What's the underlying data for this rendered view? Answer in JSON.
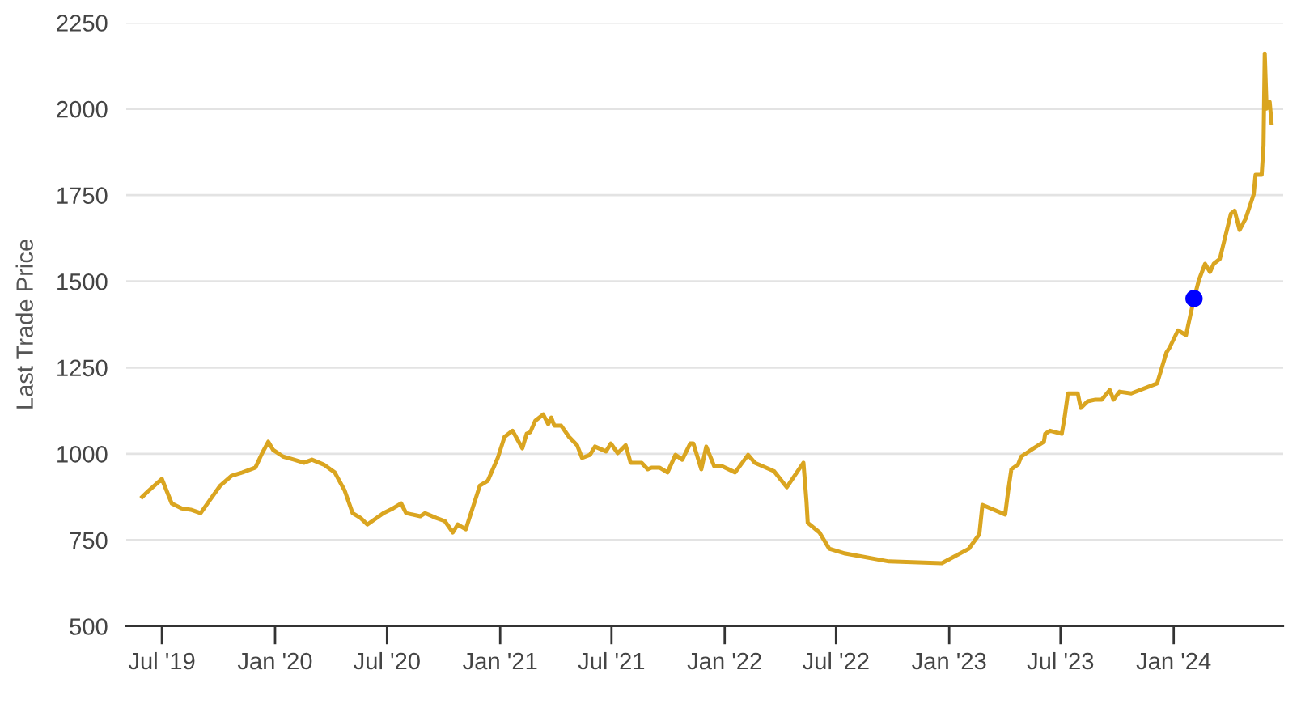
{
  "chart_data": {
    "type": "line",
    "ylabel": "Last Trade Price",
    "grid": "y",
    "xlim": [
      "2019-05-04",
      "2024-06-27"
    ],
    "ylim": [
      500,
      2250
    ],
    "yticks": [
      500,
      750,
      1000,
      1250,
      1500,
      1750,
      2000,
      2250
    ],
    "xticks": [
      {
        "value": "2019-07-01",
        "label": "Jul '19"
      },
      {
        "value": "2020-01-01",
        "label": "Jan '20"
      },
      {
        "value": "2020-07-01",
        "label": "Jul '20"
      },
      {
        "value": "2021-01-01",
        "label": "Jan '21"
      },
      {
        "value": "2021-07-01",
        "label": "Jul '21"
      },
      {
        "value": "2022-01-01",
        "label": "Jan '22"
      },
      {
        "value": "2022-07-01",
        "label": "Jul '22"
      },
      {
        "value": "2023-01-01",
        "label": "Jan '23"
      },
      {
        "value": "2023-07-01",
        "label": "Jul '23"
      },
      {
        "value": "2024-01-01",
        "label": "Jan '24"
      }
    ],
    "series": [
      {
        "color": "#daa520",
        "x": [
          "2019-05-30",
          "2019-06-10",
          "2019-07-01",
          "2019-07-17",
          "2019-08-02",
          "2019-08-17",
          "2019-09-02",
          "2019-09-15",
          "2019-10-04",
          "2019-10-22",
          "2019-11-09",
          "2019-11-30",
          "2019-12-11",
          "2019-12-21",
          "2019-12-29",
          "2020-01-14",
          "2020-02-01",
          "2020-02-17",
          "2020-03-01",
          "2020-03-20",
          "2020-04-07",
          "2020-04-23",
          "2020-05-06",
          "2020-05-19",
          "2020-05-30",
          "2020-06-25",
          "2020-07-11",
          "2020-07-24",
          "2020-08-01",
          "2020-08-24",
          "2020-09-01",
          "2020-09-19",
          "2020-10-03",
          "2020-10-16",
          "2020-10-24",
          "2020-11-06",
          "2020-11-29",
          "2020-12-12",
          "2020-12-28",
          "2021-01-08",
          "2021-01-21",
          "2021-02-06",
          "2021-02-13",
          "2021-02-19",
          "2021-02-27",
          "2021-03-12",
          "2021-03-20",
          "2021-03-25",
          "2021-03-30",
          "2021-04-10",
          "2021-04-23",
          "2021-05-06",
          "2021-05-14",
          "2021-05-27",
          "2021-06-04",
          "2021-06-22",
          "2021-06-30",
          "2021-07-11",
          "2021-07-24",
          "2021-08-01",
          "2021-08-19",
          "2021-08-29",
          "2021-09-04",
          "2021-09-17",
          "2021-09-30",
          "2021-10-13",
          "2021-10-24",
          "2021-11-06",
          "2021-11-11",
          "2021-11-24",
          "2021-12-02",
          "2021-12-15",
          "2021-12-28",
          "2022-01-18",
          "2022-02-08",
          "2022-02-19",
          "2022-03-22",
          "2022-04-12",
          "2022-05-09",
          "2022-05-14",
          "2022-05-16",
          "2022-06-04",
          "2022-06-20",
          "2022-07-16",
          "2022-09-25",
          "2022-12-20",
          "2023-02-02",
          "2023-02-19",
          "2023-02-24",
          "2023-04-02",
          "2023-04-07",
          "2023-04-12",
          "2023-04-23",
          "2023-04-28",
          "2023-05-14",
          "2023-06-04",
          "2023-06-06",
          "2023-06-14",
          "2023-07-03",
          "2023-07-08",
          "2023-07-13",
          "2023-07-29",
          "2023-08-03",
          "2023-08-14",
          "2023-08-27",
          "2023-09-06",
          "2023-09-19",
          "2023-09-25",
          "2023-10-05",
          "2023-10-24",
          "2023-12-05",
          "2023-12-20",
          "2023-12-25",
          "2024-01-08",
          "2024-01-21",
          "2024-02-03",
          "2024-02-11",
          "2024-02-21",
          "2024-02-29",
          "2024-03-06",
          "2024-03-16",
          "2024-03-21",
          "2024-04-03",
          "2024-04-09",
          "2024-04-17",
          "2024-04-27",
          "2024-05-10",
          "2024-05-13",
          "2024-05-23",
          "2024-05-26",
          "2024-05-28",
          "2024-05-31",
          "2024-06-05",
          "2024-06-08"
        ],
        "values": [
          875,
          894,
          927,
          856,
          842,
          838,
          828,
          861,
          908,
          936,
          946,
          960,
          1002,
          1035,
          1011,
          992,
          983,
          974,
          983,
          969,
          946,
          894,
          828,
          814,
          795,
          828,
          842,
          856,
          828,
          819,
          828,
          814,
          805,
          772,
          795,
          781,
          908,
          922,
          988,
          1049,
          1067,
          1016,
          1058,
          1063,
          1096,
          1114,
          1086,
          1105,
          1082,
          1082,
          1049,
          1025,
          988,
          997,
          1021,
          1007,
          1030,
          1002,
          1025,
          974,
          974,
          955,
          960,
          960,
          946,
          997,
          983,
          1030,
          1030,
          955,
          1021,
          964,
          964,
          946,
          997,
          974,
          950,
          903,
          974,
          861,
          800,
          772,
          725,
          711,
          688,
          683,
          725,
          767,
          852,
          824,
          894,
          955,
          969,
          992,
          1011,
          1035,
          1058,
          1067,
          1058,
          1110,
          1175,
          1175,
          1133,
          1152,
          1157,
          1157,
          1185,
          1157,
          1180,
          1175,
          1204,
          1293,
          1307,
          1358,
          1344,
          1450,
          1504,
          1551,
          1527,
          1551,
          1565,
          1602,
          1696,
          1705,
          1649,
          1682,
          1752,
          1809,
          1809,
          1893,
          2160,
          2001,
          2020,
          1959
        ]
      },
      {
        "type": "scatter",
        "color": "#0000ff",
        "marker": "circle",
        "x": [
          "2024-02-03"
        ],
        "values": [
          1450
        ]
      }
    ]
  }
}
